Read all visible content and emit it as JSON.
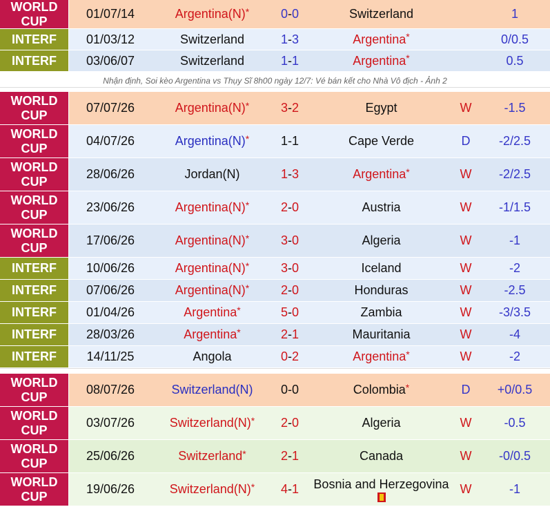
{
  "h2h": [
    {
      "league": "WORLD CUP",
      "date": "01/07/14",
      "home": "Argentina(N)",
      "home_star": "*",
      "score_l": "0",
      "score_r": "0",
      "away": "Switzerland",
      "away_star": "",
      "result": "",
      "odds": "1"
    },
    {
      "league": "INTERF",
      "date": "01/03/12",
      "home": "Switzerland",
      "home_star": "",
      "score_l": "1",
      "score_r": "3",
      "away": "Argentina",
      "away_star": "*",
      "result": "",
      "odds": "0/0.5"
    },
    {
      "league": "INTERF",
      "date": "03/06/07",
      "home": "Switzerland",
      "home_star": "",
      "score_l": "1",
      "score_r": "1",
      "away": "Argentina",
      "away_star": "*",
      "result": "",
      "odds": "0.5"
    }
  ],
  "caption": "Nhận định, Soi kèo Argentina vs Thụy Sĩ 8h00 ngày 12/7: Vé bán kết cho Nhà Vô địch - Ảnh 2",
  "argentina": [
    {
      "league": "WORLD CUP",
      "date": "07/07/26",
      "home": "Argentina(N)",
      "home_star": "*",
      "score_l": "3",
      "score_r": "2",
      "away": "Egypt",
      "away_star": "",
      "result": "W",
      "odds": "-1.5"
    },
    {
      "league": "WORLD CUP",
      "date": "04/07/26",
      "home": "Argentina(N)",
      "home_star": "*",
      "score_l": "1",
      "score_r": "1",
      "away": "Cape Verde",
      "away_star": "",
      "result": "D",
      "odds": "-2/2.5"
    },
    {
      "league": "WORLD CUP",
      "date": "28/06/26",
      "home": "Jordan(N)",
      "home_star": "",
      "score_l": "1",
      "score_r": "3",
      "away": "Argentina",
      "away_star": "*",
      "result": "W",
      "odds": "-2/2.5"
    },
    {
      "league": "WORLD CUP",
      "date": "23/06/26",
      "home": "Argentina(N)",
      "home_star": "*",
      "score_l": "2",
      "score_r": "0",
      "away": "Austria",
      "away_star": "",
      "result": "W",
      "odds": "-1/1.5"
    },
    {
      "league": "WORLD CUP",
      "date": "17/06/26",
      "home": "Argentina(N)",
      "home_star": "*",
      "score_l": "3",
      "score_r": "0",
      "away": "Algeria",
      "away_star": "",
      "result": "W",
      "odds": "-1"
    },
    {
      "league": "INTERF",
      "date": "10/06/26",
      "home": "Argentina(N)",
      "home_star": "*",
      "score_l": "3",
      "score_r": "0",
      "away": "Iceland",
      "away_star": "",
      "result": "W",
      "odds": "-2"
    },
    {
      "league": "INTERF",
      "date": "07/06/26",
      "home": "Argentina(N)",
      "home_star": "*",
      "score_l": "2",
      "score_r": "0",
      "away": "Honduras",
      "away_star": "",
      "result": "W",
      "odds": "-2.5"
    },
    {
      "league": "INTERF",
      "date": "01/04/26",
      "home": "Argentina",
      "home_star": "*",
      "score_l": "5",
      "score_r": "0",
      "away": "Zambia",
      "away_star": "",
      "result": "W",
      "odds": "-3/3.5"
    },
    {
      "league": "INTERF",
      "date": "28/03/26",
      "home": "Argentina",
      "home_star": "*",
      "score_l": "2",
      "score_r": "1",
      "away": "Mauritania",
      "away_star": "",
      "result": "W",
      "odds": "-4"
    },
    {
      "league": "INTERF",
      "date": "14/11/25",
      "home": "Angola",
      "home_star": "",
      "score_l": "0",
      "score_r": "2",
      "away": "Argentina",
      "away_star": "*",
      "result": "W",
      "odds": "-2"
    }
  ],
  "switzerland": [
    {
      "league": "WORLD CUP",
      "date": "08/07/26",
      "home": "Switzerland(N)",
      "home_star": "",
      "score_l": "0",
      "score_r": "0",
      "away": "Colombia",
      "away_star": "*",
      "result": "D",
      "odds": "+0/0.5"
    },
    {
      "league": "WORLD CUP",
      "date": "03/07/26",
      "home": "Switzerland(N)",
      "home_star": "*",
      "score_l": "2",
      "score_r": "0",
      "away": "Algeria",
      "away_star": "",
      "result": "W",
      "odds": "-0.5"
    },
    {
      "league": "WORLD CUP",
      "date": "25/06/26",
      "home": "Switzerland",
      "home_star": "*",
      "score_l": "2",
      "score_r": "1",
      "away": "Canada",
      "away_star": "",
      "result": "W",
      "odds": "-0/0.5"
    },
    {
      "league": "WORLD CUP",
      "date": "19/06/26",
      "home": "Switzerland(N)",
      "home_star": "*",
      "score_l": "4",
      "score_r": "1",
      "away": "Bosnia and Herzegovina",
      "away_star": "",
      "result": "W",
      "odds": "-1"
    }
  ]
}
